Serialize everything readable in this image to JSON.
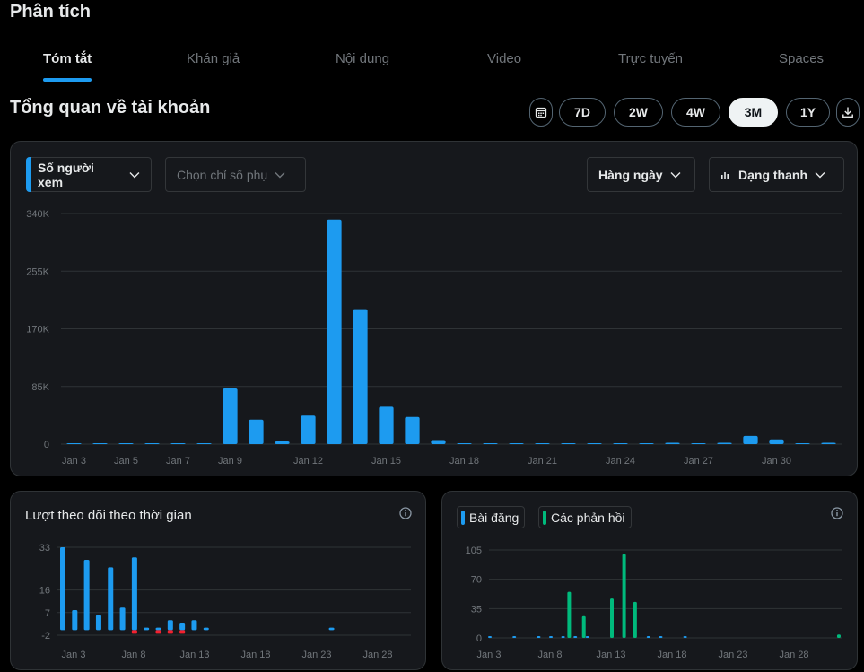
{
  "page": {
    "title": "Phân tích"
  },
  "tabs": [
    {
      "label": "Tóm tắt",
      "active": true
    },
    {
      "label": "Khán giả",
      "active": false
    },
    {
      "label": "Nội dung",
      "active": false
    },
    {
      "label": "Video",
      "active": false
    },
    {
      "label": "Trực tuyến",
      "active": false
    },
    {
      "label": "Spaces",
      "active": false
    }
  ],
  "overview": {
    "title": "Tổng quan về tài khoản",
    "ranges": [
      "7D",
      "2W",
      "4W",
      "3M",
      "1Y"
    ],
    "selected_range": "3M",
    "calendar_icon": "calendar-icon",
    "download_icon": "download-icon"
  },
  "main_chart": {
    "metric_label": "Số người xem",
    "secondary_placeholder": "Chọn chỉ số phụ",
    "interval_label": "Hàng ngày",
    "style_label": "Dạng thanh",
    "accent_color": "#1d9bf0"
  },
  "followers_card": {
    "title": "Lượt theo dõi theo thời gian",
    "info_icon": "info-icon"
  },
  "posts_card": {
    "legend": [
      {
        "label": "Bài đăng",
        "color": "#1d9bf0"
      },
      {
        "label": "Các phản hồi",
        "color": "#00ba7c"
      }
    ],
    "info_icon": "info-icon"
  },
  "chart_data": [
    {
      "type": "bar",
      "name": "views",
      "yticks": [
        "340K",
        "255K",
        "170K",
        "85K",
        "0"
      ],
      "ylim": [
        0,
        340000
      ],
      "xticks": [
        "Jan 3",
        "Jan 5",
        "Jan 7",
        "Jan 9",
        "Jan 12",
        "Jan 15",
        "Jan 18",
        "Jan 21",
        "Jan 24",
        "Jan 27",
        "Jan 30"
      ],
      "grid": true,
      "values": [
        500,
        500,
        500,
        500,
        500,
        500,
        82000,
        36000,
        4000,
        42000,
        331000,
        199000,
        55000,
        40000,
        6000,
        1000,
        500,
        500,
        500,
        500,
        500,
        500,
        500,
        2000,
        1000,
        2000,
        12000,
        7000,
        1000,
        2000
      ],
      "color": "#1d9bf0"
    },
    {
      "type": "bar",
      "name": "followers",
      "yticks": [
        "33",
        "16",
        "7",
        "-2"
      ],
      "ylim": [
        -2,
        33
      ],
      "xticks": [
        "Jan 3",
        "Jan 8",
        "Jan 13",
        "Jan 18",
        "Jan 23",
        "Jan 28"
      ],
      "grid": true,
      "gain_color": "#1d9bf0",
      "loss_color": "#f4212e",
      "gains": [
        33,
        8,
        28,
        6,
        25,
        9,
        29,
        1,
        1,
        4,
        3,
        4,
        1,
        0,
        0,
        0,
        0,
        0,
        0,
        0,
        0,
        0,
        0,
        0,
        0,
        0,
        0,
        0,
        0,
        0,
        0,
        0,
        0,
        0,
        0,
        0,
        0,
        0,
        0,
        0,
        0,
        0,
        0,
        0,
        0,
        0,
        0,
        0,
        0,
        0,
        0,
        0,
        0,
        0,
        0,
        0,
        0,
        0,
        0,
        0
      ],
      "losses": [
        0,
        0,
        0,
        0,
        0,
        0,
        1,
        0,
        1,
        1,
        1,
        0,
        0,
        0,
        0,
        0,
        0,
        0,
        0,
        0,
        0,
        0,
        0,
        0,
        0,
        0,
        0,
        0,
        0,
        0,
        0,
        0,
        0,
        0,
        0,
        0,
        0,
        0,
        0,
        0,
        0,
        0,
        0,
        0,
        0,
        0,
        0,
        0,
        0,
        0,
        0,
        0,
        0,
        0,
        0,
        0,
        0,
        0,
        0,
        0
      ],
      "sparse_gains": [
        [
          22,
          1
        ],
        [
          31,
          1
        ]
      ]
    },
    {
      "type": "bar",
      "name": "posts-replies",
      "yticks": [
        "105",
        "70",
        "35",
        "0"
      ],
      "ylim": [
        0,
        105
      ],
      "xticks": [
        "Jan 3",
        "Jan 8",
        "Jan 13",
        "Jan 18",
        "Jan 23",
        "Jan 28"
      ],
      "grid": true,
      "series": [
        {
          "name": "Bài đăng",
          "color": "#1d9bf0",
          "points": [
            [
              0,
              1
            ],
            [
              2,
              0.5
            ],
            [
              4,
              0.5
            ],
            [
              5,
              0.5
            ],
            [
              6,
              0.5
            ],
            [
              7,
              1
            ],
            [
              8,
              2
            ],
            [
              13,
              2
            ],
            [
              14,
              1
            ],
            [
              16,
              0.5
            ]
          ]
        },
        {
          "name": "Các phản hồi",
          "color": "#00ba7c",
          "points": [
            [
              6.5,
              55
            ],
            [
              7.7,
              26
            ],
            [
              10.0,
              47
            ],
            [
              11.0,
              100
            ],
            [
              11.9,
              43
            ],
            [
              28.6,
              4
            ]
          ]
        }
      ]
    }
  ]
}
